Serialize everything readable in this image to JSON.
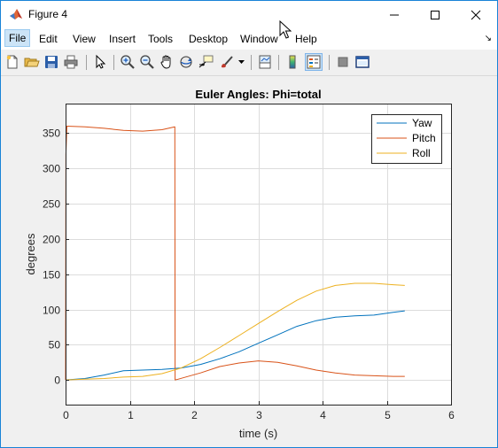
{
  "window": {
    "title": "Figure 4",
    "minimize_icon": "minimize-icon",
    "maximize_icon": "maximize-icon",
    "close_icon": "close-icon"
  },
  "menu": {
    "items": [
      "File",
      "Edit",
      "View",
      "Insert",
      "Tools",
      "Desktop",
      "Window",
      "Help"
    ],
    "active": "File",
    "overflow_icon": "menu-overflow-arrow-icon"
  },
  "toolbar": {
    "buttons": [
      {
        "icon": "new-figure-icon"
      },
      {
        "icon": "open-file-icon"
      },
      {
        "icon": "save-icon"
      },
      {
        "icon": "print-icon"
      },
      {
        "icon": "edit-plot-arrow-icon"
      },
      {
        "icon": "zoom-in-icon"
      },
      {
        "icon": "zoom-out-icon"
      },
      {
        "icon": "pan-hand-icon"
      },
      {
        "icon": "rotate-3d-icon"
      },
      {
        "icon": "data-cursor-icon"
      },
      {
        "icon": "brush-icon"
      },
      {
        "icon": "link-plot-icon"
      },
      {
        "icon": "colorbar-icon"
      },
      {
        "icon": "legend-icon",
        "pressed": true
      },
      {
        "icon": "hide-plot-tools-icon"
      },
      {
        "icon": "show-plot-tools-icon"
      }
    ]
  },
  "chart_data": {
    "type": "line",
    "title": "Euler Angles: Phi=total",
    "xlabel": "time (s)",
    "ylabel": "degrees",
    "xlim": [
      0,
      6
    ],
    "ylim": [
      -35,
      392
    ],
    "xticks": [
      0,
      1,
      2,
      3,
      4,
      5,
      6
    ],
    "yticks": [
      0,
      50,
      100,
      150,
      200,
      250,
      300,
      350
    ],
    "grid": true,
    "legend_position": "top-right",
    "series": [
      {
        "name": "Yaw",
        "color": "#0072bd",
        "x": [
          0,
          0.3,
          0.6,
          0.9,
          1.2,
          1.5,
          1.8,
          2.1,
          2.4,
          2.7,
          3.0,
          3.3,
          3.6,
          3.9,
          4.2,
          4.5,
          4.8,
          5.1,
          5.28
        ],
        "y": [
          0,
          2,
          7,
          13,
          14,
          15,
          17,
          22,
          30,
          40,
          52,
          64,
          76,
          84,
          89,
          91,
          92,
          96,
          98
        ]
      },
      {
        "name": "Pitch",
        "color": "#d95319",
        "x": [
          0,
          0.005,
          0.02,
          0.3,
          0.6,
          0.9,
          1.2,
          1.5,
          1.7,
          1.705,
          1.75,
          2.1,
          2.4,
          2.7,
          3.0,
          3.3,
          3.6,
          3.9,
          4.2,
          4.5,
          4.8,
          5.1,
          5.28
        ],
        "y": [
          0,
          320,
          360,
          359,
          357,
          354,
          353,
          355,
          359,
          0,
          1,
          10,
          19,
          24,
          27,
          25,
          20,
          14,
          10,
          7,
          6,
          5,
          5
        ]
      },
      {
        "name": "Roll",
        "color": "#edb120",
        "x": [
          0,
          0.3,
          0.6,
          0.9,
          1.2,
          1.5,
          1.8,
          2.1,
          2.4,
          2.7,
          3.0,
          3.3,
          3.6,
          3.9,
          4.2,
          4.5,
          4.8,
          5.1,
          5.28
        ],
        "y": [
          0,
          1,
          2,
          4,
          5,
          9,
          17,
          30,
          46,
          63,
          80,
          97,
          113,
          126,
          134,
          137,
          137,
          135,
          134
        ]
      }
    ]
  }
}
